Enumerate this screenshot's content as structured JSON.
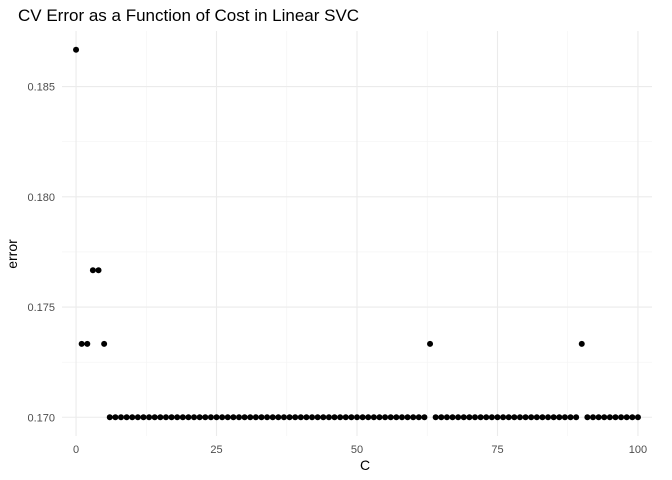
{
  "chart_data": {
    "type": "scatter",
    "title": "CV Error as a Function of Cost in Linear SVC",
    "xlabel": "C",
    "ylabel": "error",
    "xlim": [
      -2.5,
      102.5
    ],
    "ylim": [
      0.16915,
      0.18752
    ],
    "x_ticks": [
      0,
      25,
      50,
      75,
      100
    ],
    "x_tick_labels": [
      "0",
      "25",
      "50",
      "75",
      "100"
    ],
    "y_ticks": [
      0.17,
      0.175,
      0.18,
      0.185
    ],
    "y_tick_labels": [
      "0.170",
      "0.175",
      "0.180",
      "0.185"
    ],
    "grid": true,
    "point_color": "#000000",
    "x": [
      0.001,
      1,
      2,
      3,
      4,
      5,
      6,
      7,
      8,
      9,
      10,
      11,
      12,
      13,
      14,
      15,
      16,
      17,
      18,
      19,
      20,
      21,
      22,
      23,
      24,
      25,
      26,
      27,
      28,
      29,
      30,
      31,
      32,
      33,
      34,
      35,
      36,
      37,
      38,
      39,
      40,
      41,
      42,
      43,
      44,
      45,
      46,
      47,
      48,
      49,
      50,
      51,
      52,
      53,
      54,
      55,
      56,
      57,
      58,
      59,
      60,
      61,
      62,
      63,
      64,
      65,
      66,
      67,
      68,
      69,
      70,
      71,
      72,
      73,
      74,
      75,
      76,
      77,
      78,
      79,
      80,
      81,
      82,
      83,
      84,
      85,
      86,
      87,
      88,
      89,
      90,
      91,
      92,
      93,
      94,
      95,
      96,
      97,
      98,
      99,
      100
    ],
    "y": [
      0.18667,
      0.17333,
      0.17333,
      0.17667,
      0.17667,
      0.17333,
      0.17,
      0.17,
      0.17,
      0.17,
      0.17,
      0.17,
      0.17,
      0.17,
      0.17,
      0.17,
      0.17,
      0.17,
      0.17,
      0.17,
      0.17,
      0.17,
      0.17,
      0.17,
      0.17,
      0.17,
      0.17,
      0.17,
      0.17,
      0.17,
      0.17,
      0.17,
      0.17,
      0.17,
      0.17,
      0.17,
      0.17,
      0.17,
      0.17,
      0.17,
      0.17,
      0.17,
      0.17,
      0.17,
      0.17,
      0.17,
      0.17,
      0.17,
      0.17,
      0.17,
      0.17,
      0.17,
      0.17,
      0.17,
      0.17,
      0.17,
      0.17,
      0.17,
      0.17,
      0.17,
      0.17,
      0.17,
      0.17,
      0.17333,
      0.17,
      0.17,
      0.17,
      0.17,
      0.17,
      0.17,
      0.17,
      0.17,
      0.17,
      0.17,
      0.17,
      0.17,
      0.17,
      0.17,
      0.17,
      0.17,
      0.17,
      0.17,
      0.17,
      0.17,
      0.17,
      0.17,
      0.17,
      0.17,
      0.17,
      0.17,
      0.17333,
      0.17,
      0.17,
      0.17,
      0.17,
      0.17,
      0.17,
      0.17,
      0.17,
      0.17,
      0.17
    ]
  }
}
